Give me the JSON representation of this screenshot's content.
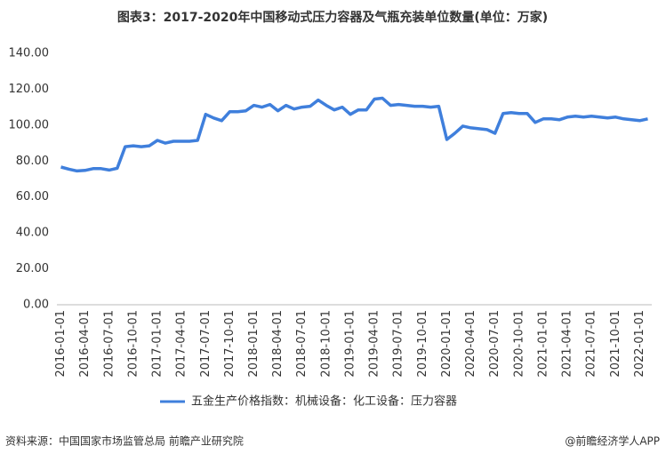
{
  "chart_data": {
    "type": "line",
    "title": "图表3：2017-2020年中国移动式压力容器及气瓶充装单位数量(单位：万家)",
    "categories": [
      "2016-01-01",
      null,
      null,
      "2016-04-01",
      null,
      null,
      "2016-07-01",
      null,
      null,
      "2016-10-01",
      null,
      null,
      "2017-01-01",
      null,
      null,
      "2017-04-01",
      null,
      null,
      "2017-07-01",
      null,
      null,
      "2017-10-01",
      null,
      null,
      "2018-01-01",
      null,
      null,
      "2018-04-01",
      null,
      null,
      "2018-07-01",
      null,
      null,
      "2018-10-01",
      null,
      null,
      "2019-01-01",
      null,
      null,
      "2019-04-01",
      null,
      null,
      "2019-07-01",
      null,
      null,
      "2019-10-01",
      null,
      null,
      "2020-01-01",
      null,
      null,
      "2020-04-01",
      null,
      null,
      "2020-07-01",
      null,
      null,
      "2020-10-01",
      null,
      null,
      "2021-01-01",
      null,
      null,
      "2021-04-01",
      null,
      null,
      "2021-07-01",
      null,
      null,
      "2021-10-01",
      null,
      null,
      "2022-01-01",
      null
    ],
    "series": [
      {
        "name": "五金生产价格指数：机械设备：化工设备：压力容器",
        "color": "#3f7fdc",
        "values": [
          76.7,
          75.5,
          74.5,
          74.8,
          75.8,
          75.8,
          75,
          76,
          88,
          88.5,
          88,
          88.5,
          91.5,
          90,
          91,
          91,
          91,
          91.5,
          106,
          104,
          102.5,
          107.5,
          107.5,
          108,
          111,
          110,
          111.5,
          108,
          111,
          109,
          110,
          110.5,
          114,
          111,
          108.5,
          110,
          106,
          108.5,
          108.5,
          114.5,
          115,
          111,
          111.5,
          111,
          110.5,
          110.5,
          110,
          110.5,
          92,
          95.5,
          99.5,
          98.5,
          98,
          97.5,
          95.5,
          106.5,
          107,
          106.5,
          106.5,
          101.5,
          103.5,
          103.5,
          103,
          104.5,
          105,
          104.5,
          105,
          104.5,
          104,
          104.5,
          103.5,
          103,
          102.5,
          103.5
        ]
      }
    ],
    "ylim": [
      0,
      140
    ],
    "yticks": [
      {
        "value": 0,
        "label": "0.00"
      },
      {
        "value": 20,
        "label": "20.00"
      },
      {
        "value": 40,
        "label": "40.00"
      },
      {
        "value": 60,
        "label": "60.00"
      },
      {
        "value": 80,
        "label": "80.00"
      },
      {
        "value": 100,
        "label": "100.00"
      },
      {
        "value": 120,
        "label": "120.00"
      },
      {
        "value": 140,
        "label": "140.00"
      }
    ],
    "source": "资料来源：中国国家市场监管总局 前瞻产业研究院",
    "credit": "@前瞻经济学人APP"
  }
}
